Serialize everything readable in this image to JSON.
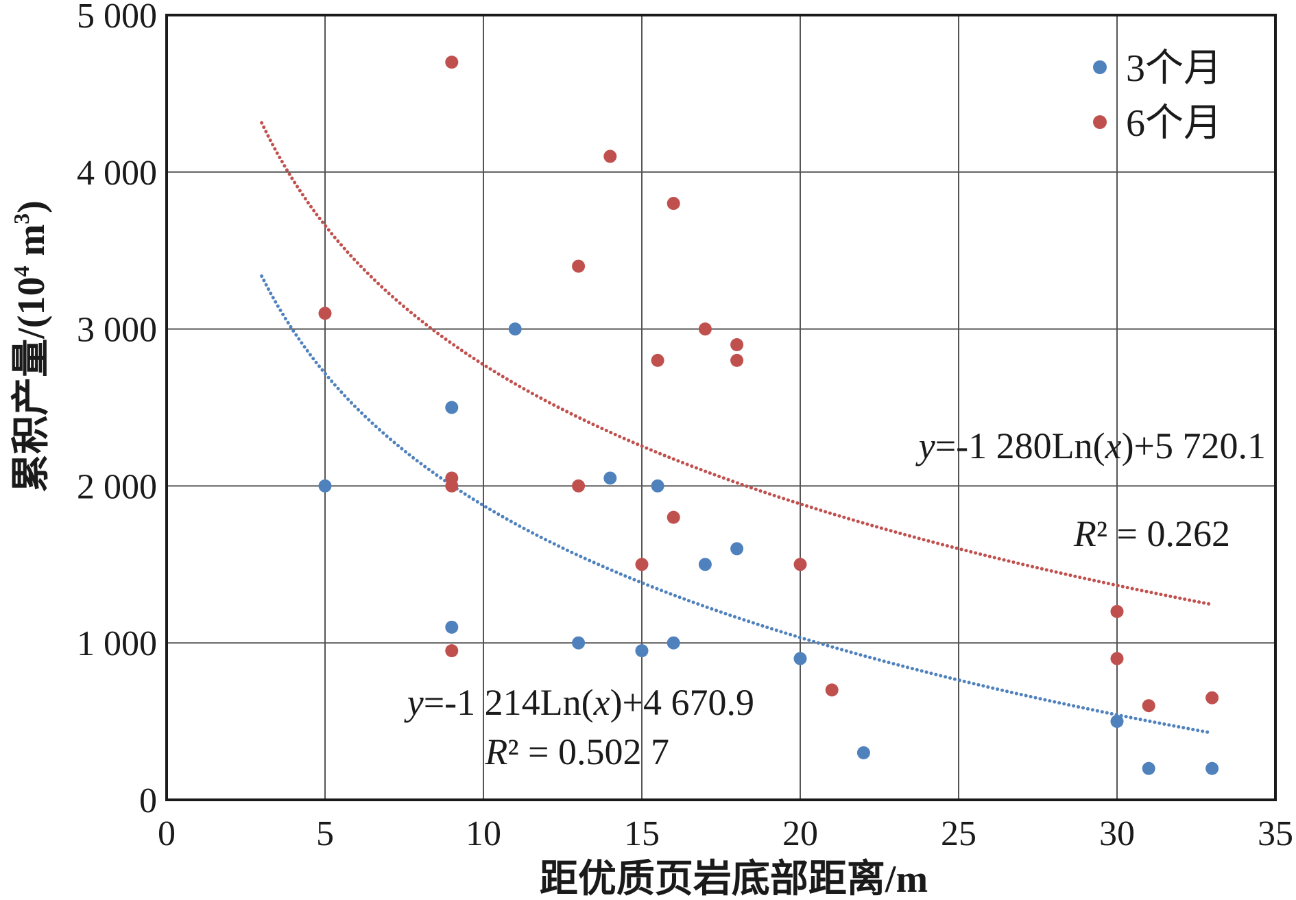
{
  "chart_data": {
    "type": "scatter",
    "title": "",
    "xlabel": "距优质页岩底部距离/m",
    "ylabel_main": "累积产量/(10",
    "ylabel_sup1": "4",
    "ylabel_mid": " m",
    "ylabel_sup2": "3",
    "ylabel_end": ")",
    "xlim": [
      0,
      35
    ],
    "ylim": [
      0,
      5000
    ],
    "x_ticks": [
      0,
      5,
      10,
      15,
      20,
      25,
      30,
      35
    ],
    "x_tick_labels": [
      "0",
      "5",
      "10",
      "15",
      "20",
      "25",
      "30",
      "35"
    ],
    "y_ticks": [
      0,
      1000,
      2000,
      3000,
      4000,
      5000
    ],
    "y_tick_labels": [
      "0",
      "1 000",
      "2 000",
      "3 000",
      "4 000",
      "5 000"
    ],
    "grid": true,
    "legend_position": "top-right",
    "series": [
      {
        "name": "3个月",
        "color": "#4f81bd",
        "points": [
          [
            5,
            2000
          ],
          [
            9,
            2500
          ],
          [
            9,
            1100
          ],
          [
            11,
            3000
          ],
          [
            13,
            1000
          ],
          [
            14,
            2050
          ],
          [
            15,
            950
          ],
          [
            15.5,
            2000
          ],
          [
            16,
            1000
          ],
          [
            17,
            1500
          ],
          [
            18,
            1600
          ],
          [
            20,
            900
          ],
          [
            22,
            300
          ],
          [
            30,
            500
          ],
          [
            31,
            200
          ],
          [
            33,
            200
          ]
        ],
        "trendline": {
          "type": "log",
          "a": -1214,
          "b": 4670.9,
          "x_range": [
            3,
            33
          ]
        },
        "equation": {
          "y": "y",
          "mid": "=-1 214Ln(",
          "x": "x",
          "end": ")+4 670.9"
        },
        "r2": {
          "R": "R",
          "rest": "² = 0.502 7"
        }
      },
      {
        "name": "6个月",
        "color": "#c0504d",
        "points": [
          [
            5,
            3100
          ],
          [
            9,
            4700
          ],
          [
            9,
            2050
          ],
          [
            9,
            2000
          ],
          [
            9,
            950
          ],
          [
            13,
            3400
          ],
          [
            13,
            2000
          ],
          [
            14,
            4100
          ],
          [
            15,
            1500
          ],
          [
            15.5,
            2800
          ],
          [
            16,
            3800
          ],
          [
            16,
            1800
          ],
          [
            17,
            3000
          ],
          [
            18,
            2900
          ],
          [
            18,
            2800
          ],
          [
            20,
            1500
          ],
          [
            21,
            700
          ],
          [
            30,
            1200
          ],
          [
            30,
            900
          ],
          [
            31,
            600
          ],
          [
            33,
            650
          ]
        ],
        "trendline": {
          "type": "log",
          "a": -1280,
          "b": 5720.1,
          "x_range": [
            3,
            33
          ]
        },
        "equation": {
          "y": "y",
          "mid": "=-1 280Ln(",
          "x": "x",
          "end": ")+5 720.1"
        },
        "r2": {
          "R": "R",
          "rest": "² = 0.262"
        }
      }
    ]
  }
}
